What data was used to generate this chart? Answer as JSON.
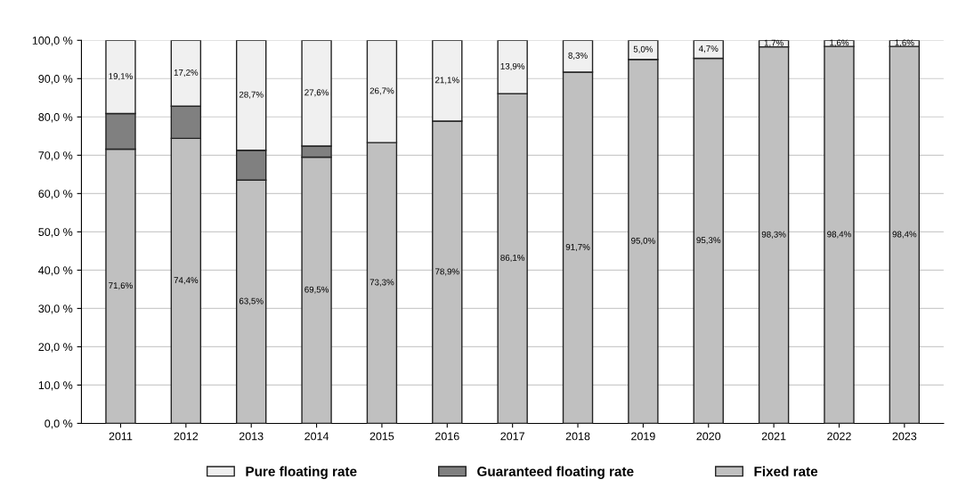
{
  "chart_data": {
    "type": "bar",
    "stacked": true,
    "categories": [
      "2011",
      "2012",
      "2013",
      "2014",
      "2015",
      "2016",
      "2017",
      "2018",
      "2019",
      "2020",
      "2021",
      "2022",
      "2023"
    ],
    "series": [
      {
        "name": "Fixed rate",
        "color": "#c0c0c0",
        "values": [
          71.6,
          74.4,
          63.5,
          69.5,
          73.3,
          78.9,
          86.1,
          91.7,
          95.0,
          95.3,
          98.3,
          98.4,
          98.4
        ],
        "value_labels": [
          "71,6%",
          "74,4%",
          "63,5%",
          "69,5%",
          "73,3%",
          "78,9%",
          "86,1%",
          "91,7%",
          "95,0%",
          "95,3%",
          "98,3%",
          "98,4%",
          "98,4%"
        ]
      },
      {
        "name": "Guaranteed floating rate",
        "color": "#808080",
        "values": [
          9.3,
          8.4,
          7.8,
          2.9,
          null,
          null,
          null,
          null,
          null,
          null,
          null,
          null,
          null
        ]
      },
      {
        "name": "Pure floating rate",
        "color": "#f0f0f0",
        "values": [
          19.1,
          17.2,
          28.7,
          27.6,
          26.7,
          21.1,
          13.9,
          8.3,
          5.0,
          4.7,
          1.7,
          1.6,
          1.6
        ],
        "value_labels": [
          "19,1%",
          "17,2%",
          "28,7%",
          "27,6%",
          "26,7%",
          "21,1%",
          "13,9%",
          "8,3%",
          "5,0%",
          "4,7%",
          "1,7%",
          "1,6%",
          "1,6%"
        ]
      }
    ],
    "ylim": [
      0,
      100
    ],
    "yticks": [
      {
        "value": 0,
        "label": "0,0 %"
      },
      {
        "value": 10,
        "label": "10,0 %"
      },
      {
        "value": 20,
        "label": "20,0 %"
      },
      {
        "value": 30,
        "label": "30,0 %"
      },
      {
        "value": 40,
        "label": "40,0 %"
      },
      {
        "value": 50,
        "label": "50,0 %"
      },
      {
        "value": 60,
        "label": "60,0 %"
      },
      {
        "value": 70,
        "label": "70,0 %"
      },
      {
        "value": 80,
        "label": "80,0 %"
      },
      {
        "value": 90,
        "label": "90,0 %"
      },
      {
        "value": 100,
        "label": "100,0 %"
      }
    ],
    "grid": "y",
    "legend": "bottom"
  }
}
